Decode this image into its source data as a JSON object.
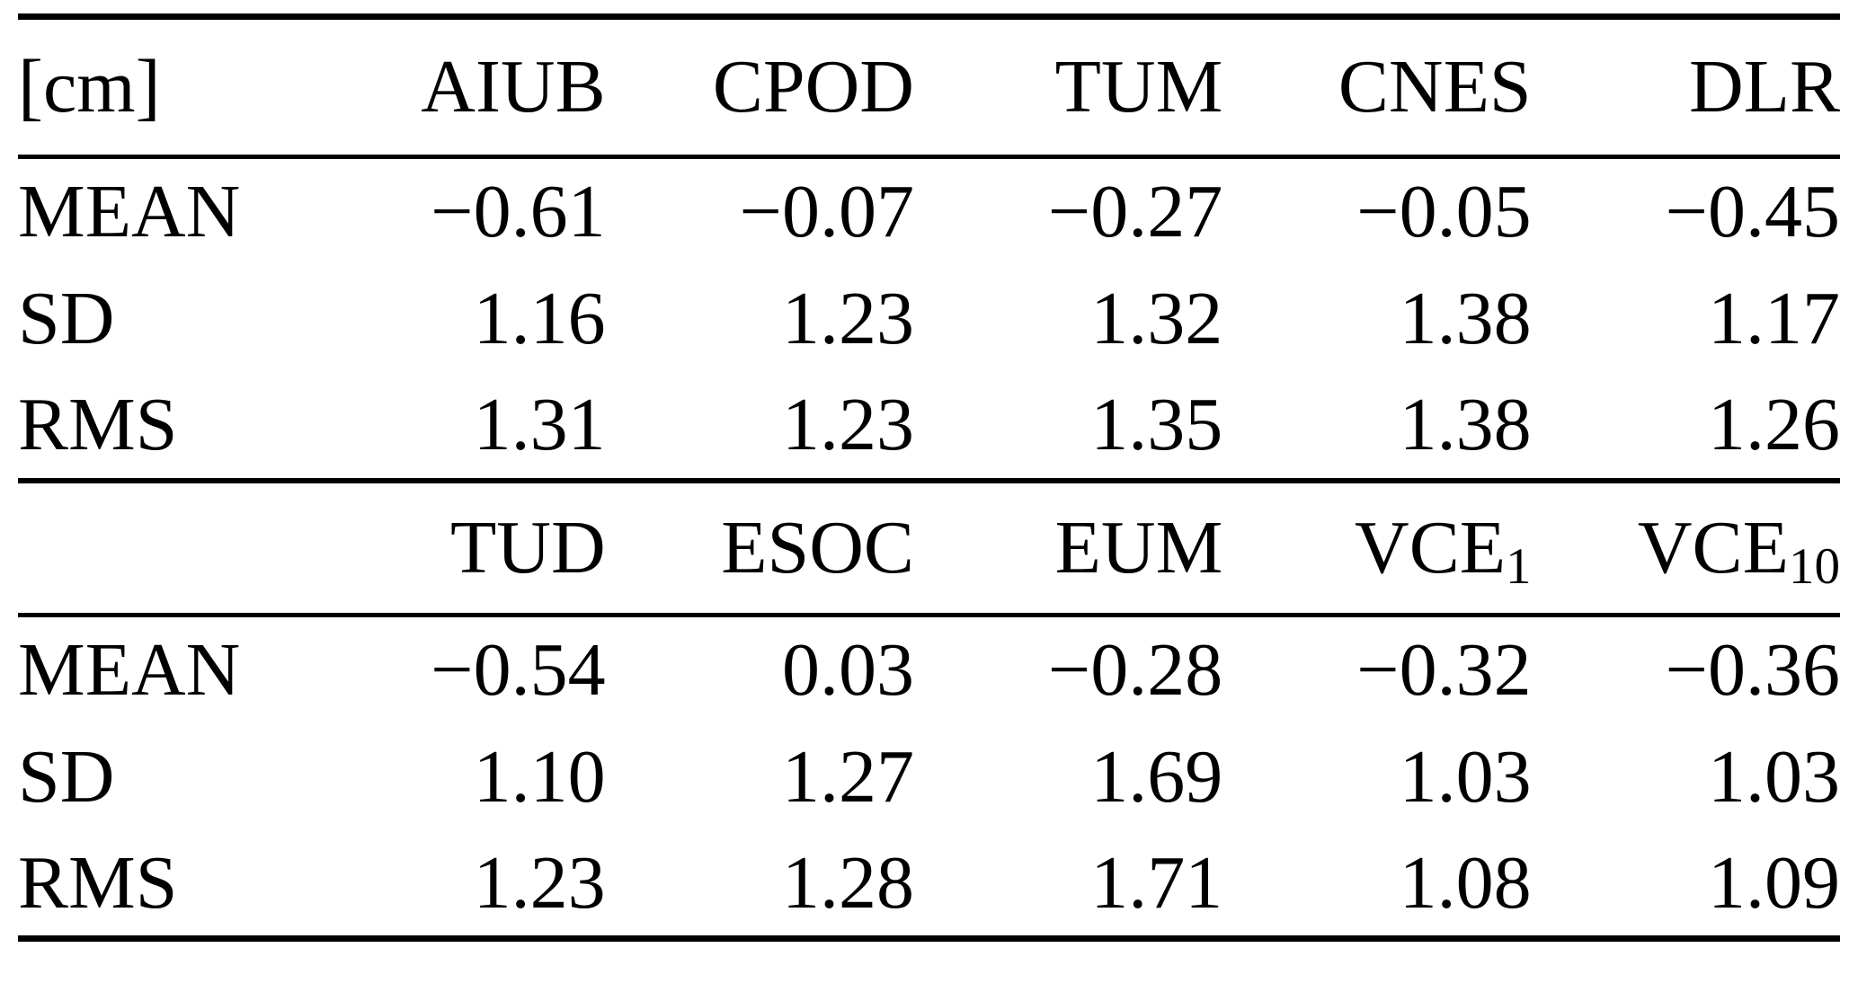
{
  "colors": {
    "text": "#000000",
    "background": "#ffffff",
    "rule": "#000000"
  },
  "table": {
    "unit_label": "[cm]",
    "sections": [
      {
        "corner_label": "[cm]",
        "columns": [
          {
            "label": "AIUB",
            "sub": ""
          },
          {
            "label": "CPOD",
            "sub": ""
          },
          {
            "label": "TUM",
            "sub": ""
          },
          {
            "label": "CNES",
            "sub": ""
          },
          {
            "label": "DLR",
            "sub": ""
          }
        ],
        "rows": [
          {
            "label": "MEAN",
            "values": [
              "−0.61",
              "−0.07",
              "−0.27",
              "−0.05",
              "−0.45"
            ]
          },
          {
            "label": "SD",
            "values": [
              "1.16",
              "1.23",
              "1.32",
              "1.38",
              "1.17"
            ]
          },
          {
            "label": "RMS",
            "values": [
              "1.31",
              "1.23",
              "1.35",
              "1.38",
              "1.26"
            ]
          }
        ]
      },
      {
        "corner_label": "",
        "columns": [
          {
            "label": "TUD",
            "sub": ""
          },
          {
            "label": "ESOC",
            "sub": ""
          },
          {
            "label": "EUM",
            "sub": ""
          },
          {
            "label": "VCE",
            "sub": "1"
          },
          {
            "label": "VCE",
            "sub": "10"
          }
        ],
        "rows": [
          {
            "label": "MEAN",
            "values": [
              "−0.54",
              "0.03",
              "−0.28",
              "−0.32",
              "−0.36"
            ]
          },
          {
            "label": "SD",
            "values": [
              "1.10",
              "1.27",
              "1.69",
              "1.03",
              "1.03"
            ]
          },
          {
            "label": "RMS",
            "values": [
              "1.23",
              "1.28",
              "1.71",
              "1.08",
              "1.09"
            ]
          }
        ]
      }
    ]
  }
}
